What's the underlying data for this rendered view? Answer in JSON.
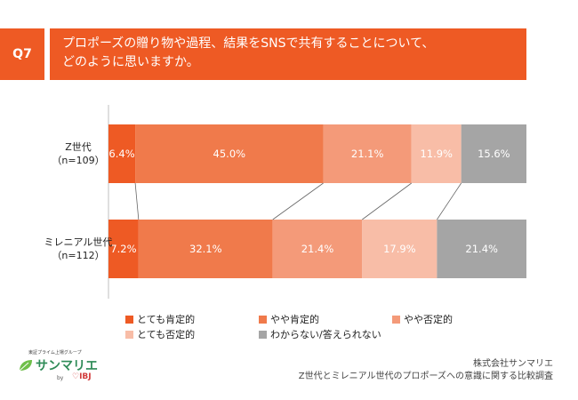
{
  "question": {
    "tag": "Q7",
    "line1": "プロポーズの贈り物や過程、結果をSNSで共有することについて、",
    "line2": "どのように思いますか。"
  },
  "chart_data": {
    "type": "bar",
    "orientation": "horizontal-stacked-100",
    "title": "",
    "rows": [
      {
        "label_line1": "Z世代",
        "label_line2": "（n=109）"
      },
      {
        "label_line1": "ミレニアル世代",
        "label_line2": "（n=112）"
      }
    ],
    "series": [
      {
        "name": "とても肯定的",
        "color": "#ee5a24",
        "values": [
          6.4,
          7.2
        ]
      },
      {
        "name": "やや肯定的",
        "color": "#f07a4b",
        "values": [
          45.0,
          32.1
        ]
      },
      {
        "name": "やや否定的",
        "color": "#f49a79",
        "values": [
          21.1,
          21.4
        ]
      },
      {
        "name": "とても否定的",
        "color": "#f8bda7",
        "values": [
          11.9,
          17.9
        ]
      },
      {
        "name": "わからない/答えられない",
        "color": "#a5a5a5",
        "values": [
          15.6,
          21.4
        ]
      }
    ],
    "value_labels": [
      [
        "6.4%",
        "45.0%",
        "21.1%",
        "11.9%",
        "15.6%"
      ],
      [
        "7.2%",
        "32.1%",
        "21.4%",
        "17.9%",
        "21.4%"
      ]
    ],
    "legend_position": "bottom",
    "grid": false
  },
  "source": {
    "company": "株式会社サンマリエ",
    "survey": "Z世代とミレニアル世代のプロポーズへの意識に関する比較調査"
  },
  "logo": {
    "top_text": "東証プライム上場グループ",
    "name": "サンマリエ",
    "by": "by",
    "ibj": "♡IBJ"
  }
}
